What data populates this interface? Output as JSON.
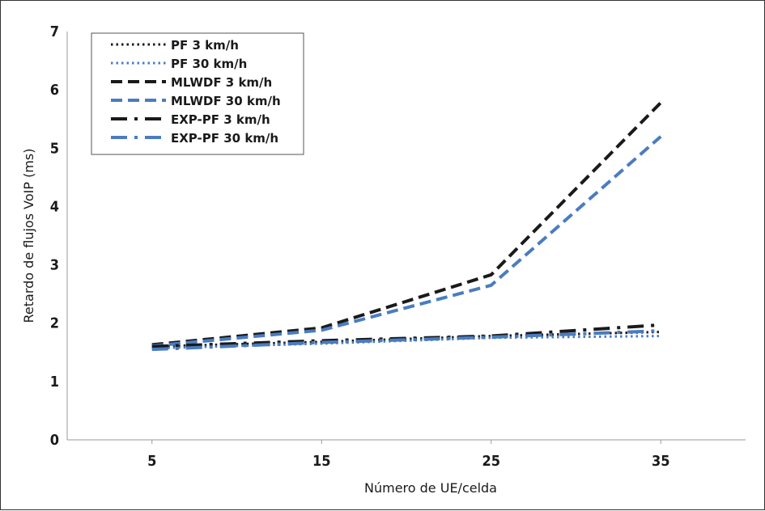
{
  "chart_data": {
    "type": "line",
    "xlabel": "Número de UE/celda",
    "ylabel": "Retardo de flujos VoIP (ms)",
    "x": [
      5,
      15,
      25,
      35
    ],
    "xlim": [
      0,
      40
    ],
    "ylim": [
      0,
      7
    ],
    "y_ticks": [
      0,
      1,
      2,
      3,
      4,
      5,
      6,
      7
    ],
    "grid": false,
    "legend_position": "top-left",
    "series": [
      {
        "name": "PF 3 km/h",
        "values": [
          1.6,
          1.68,
          1.78,
          1.85
        ],
        "color": "#1a1a1a",
        "style": "dotted"
      },
      {
        "name": "PF 30 km/h",
        "values": [
          1.57,
          1.65,
          1.75,
          1.78
        ],
        "color": "#4a7cc0",
        "style": "dotted"
      },
      {
        "name": "MLWDF 3 km/h",
        "values": [
          1.63,
          1.92,
          2.83,
          5.78
        ],
        "color": "#1a1a1a",
        "style": "dashed"
      },
      {
        "name": "MLWDF 30 km/h",
        "values": [
          1.61,
          1.88,
          2.65,
          5.2
        ],
        "color": "#4a7cc0",
        "style": "dashed"
      },
      {
        "name": "EXP-PF 3 km/h",
        "values": [
          1.6,
          1.7,
          1.78,
          1.97
        ],
        "color": "#1a1a1a",
        "style": "dashdot"
      },
      {
        "name": "EXP-PF 30 km/h",
        "values": [
          1.55,
          1.67,
          1.76,
          1.87
        ],
        "color": "#4a7cc0",
        "style": "dashdot"
      }
    ]
  }
}
